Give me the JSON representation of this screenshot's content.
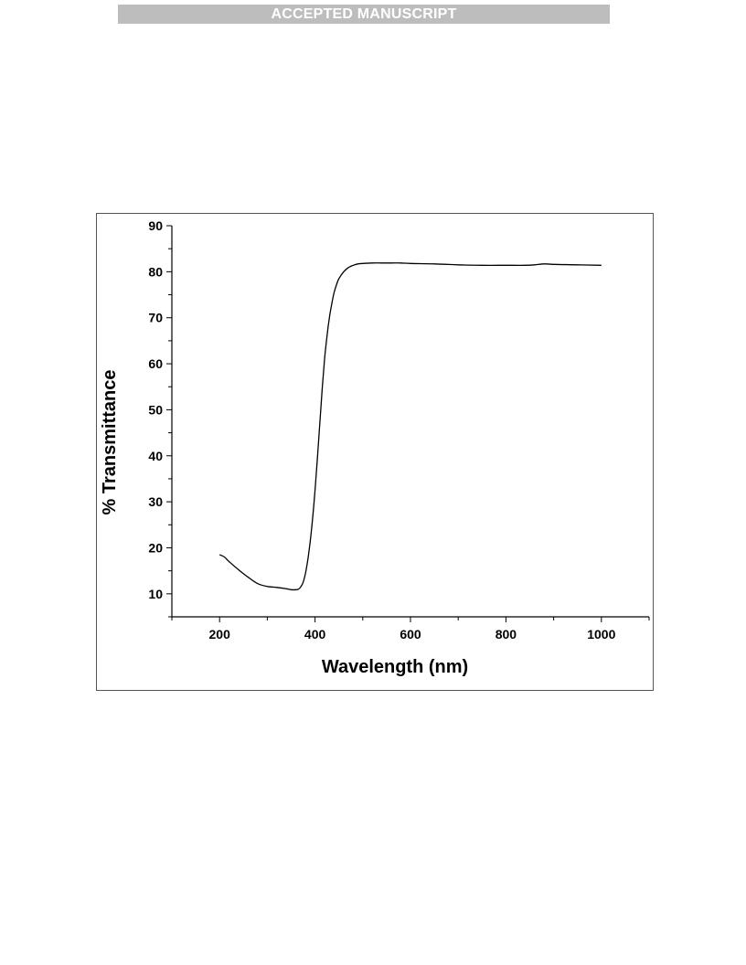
{
  "header": {
    "banner_text": "ACCEPTED MANUSCRIPT"
  },
  "chart_data": {
    "type": "line",
    "title": "",
    "xlabel": "Wavelength (nm)",
    "ylabel": "% Transmittance",
    "xlim": [
      100,
      1100
    ],
    "ylim": [
      5,
      90
    ],
    "xticks": [
      200,
      400,
      600,
      800,
      1000
    ],
    "yticks": [
      10,
      20,
      30,
      40,
      50,
      60,
      70,
      80,
      90
    ],
    "grid": false,
    "legend": "none",
    "line_color": "#000000",
    "series": [
      {
        "x": [
          200,
          210,
          220,
          240,
          260,
          280,
          300,
          320,
          340,
          350,
          360,
          365,
          370,
          375,
          380,
          385,
          390,
          395,
          400,
          405,
          410,
          415,
          420,
          425,
          430,
          435,
          440,
          445,
          450,
          460,
          470,
          480,
          490,
          500,
          520,
          540,
          560,
          580,
          600,
          650,
          700,
          750,
          800,
          840,
          860,
          880,
          900,
          950,
          1000
        ],
        "y": [
          18.5,
          18.0,
          17.0,
          15.2,
          13.6,
          12.2,
          11.6,
          11.4,
          11.1,
          10.9,
          10.9,
          11.0,
          11.5,
          12.5,
          14.5,
          17.5,
          21.5,
          26.5,
          32.5,
          39.5,
          47.0,
          54.5,
          61.0,
          66.0,
          70.0,
          73.0,
          75.5,
          77.2,
          78.5,
          80.0,
          80.9,
          81.4,
          81.7,
          81.8,
          81.9,
          81.9,
          81.9,
          81.9,
          81.8,
          81.7,
          81.5,
          81.4,
          81.4,
          81.4,
          81.5,
          81.7,
          81.6,
          81.5,
          81.4
        ]
      }
    ]
  }
}
